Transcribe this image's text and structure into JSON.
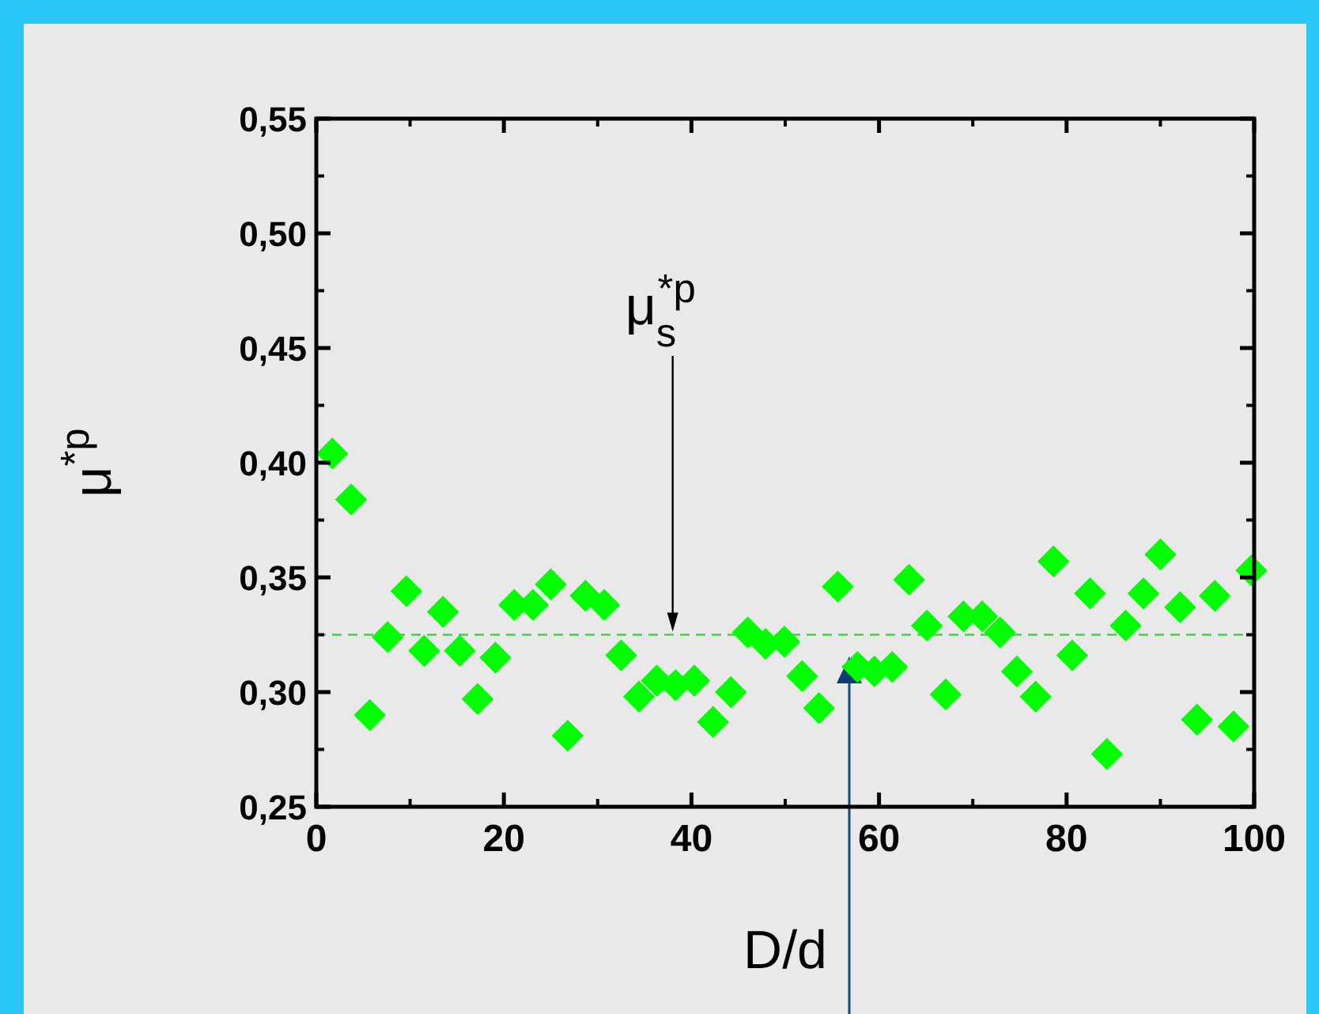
{
  "chart_data": {
    "type": "scatter",
    "xlabel": "D/d",
    "ylabel": "μ$^{*p}$",
    "xlim": [
      0,
      100
    ],
    "xticks": [
      0,
      20,
      40,
      60,
      80,
      100
    ],
    "ylim": [
      0.25,
      0.55
    ],
    "yticks": [
      {
        "value": 0.25,
        "label": "0,25"
      },
      {
        "value": 0.3,
        "label": "0,30"
      },
      {
        "value": 0.35,
        "label": "0,35"
      },
      {
        "value": 0.4,
        "label": "0,40"
      },
      {
        "value": 0.45,
        "label": "0,45"
      },
      {
        "value": 0.5,
        "label": "0,50"
      },
      {
        "value": 0.55,
        "label": "0,55"
      }
    ],
    "grid": false,
    "marker": "diamond",
    "series": [
      {
        "color": "#00ff00",
        "x": [
          1.7,
          3.7,
          5.7,
          7.6,
          9.6,
          11.5,
          13.5,
          15.3,
          17.2,
          19.1,
          21.1,
          23.1,
          25,
          26.8,
          28.7,
          30.7,
          32.5,
          34.4,
          36.3,
          38.3,
          40.3,
          42.3,
          44.2,
          46,
          47.9,
          49.9,
          51.8,
          53.6,
          55.6,
          57.7,
          59.5,
          61.4,
          63.2,
          65.1,
          67.1,
          69,
          71,
          72.9,
          74.7,
          76.7,
          78.6,
          80.6,
          82.5,
          84.3,
          86.3,
          88.2,
          90,
          92.1,
          93.9,
          95.8,
          97.8,
          99.7
        ],
        "values": [
          0.404,
          0.384,
          0.29,
          0.324,
          0.344,
          0.318,
          0.335,
          0.318,
          0.297,
          0.315,
          0.338,
          0.338,
          0.347,
          0.281,
          0.342,
          0.338,
          0.316,
          0.298,
          0.305,
          0.303,
          0.305,
          0.287,
          0.3,
          0.326,
          0.321,
          0.322,
          0.307,
          0.293,
          0.346,
          0.311,
          0.309,
          0.311,
          0.349,
          0.329,
          0.299,
          0.333,
          0.333,
          0.326,
          0.309,
          0.298,
          0.357,
          0.316,
          0.343,
          0.273,
          0.329,
          0.343,
          0.36,
          0.337,
          0.288,
          0.342,
          0.285,
          0.353
        ]
      }
    ],
    "ref_lines": [
      {
        "axis": "y",
        "value": 0.325,
        "color": "#33dd33",
        "line_style": "dashed"
      }
    ],
    "annotations": [
      {
        "text": "μ$_{s}$$^{*p}$",
        "x": 38,
        "y": 0.325
      }
    ]
  }
}
